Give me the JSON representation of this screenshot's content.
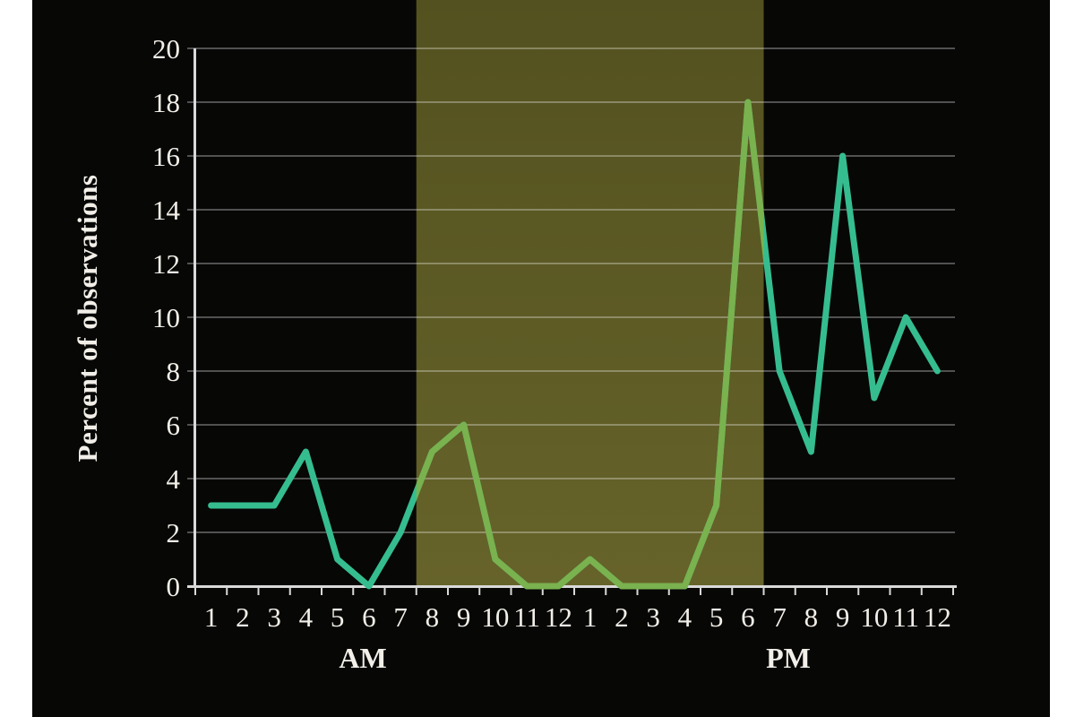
{
  "figure": {
    "ylabel": "Percent of observations",
    "am_label": "AM",
    "pm_label": "PM"
  },
  "chart_data": {
    "type": "line",
    "title": "",
    "xlabel": "",
    "ylabel": "Percent of observations",
    "ylim": [
      0,
      20
    ],
    "yticks": [
      0,
      2,
      4,
      6,
      8,
      10,
      12,
      14,
      16,
      18,
      20
    ],
    "grid": true,
    "x_tick_labels": [
      "1",
      "2",
      "3",
      "4",
      "5",
      "6",
      "7",
      "8",
      "9",
      "10",
      "11",
      "12",
      "1",
      "2",
      "3",
      "4",
      "5",
      "6",
      "7",
      "8",
      "9",
      "10",
      "11",
      "12"
    ],
    "x_group_labels": [
      "AM",
      "PM"
    ],
    "series": [
      {
        "name": "percent-of-observations",
        "values": [
          3,
          3,
          3,
          5,
          1,
          0,
          2,
          5,
          6,
          1,
          0,
          0,
          1,
          0,
          0,
          0,
          3,
          18,
          8,
          5,
          16,
          7,
          10,
          8
        ]
      }
    ],
    "shaded_region": {
      "from_category_boundary": 7,
      "to_category_boundary": 18,
      "covers_hours": "8 AM through 6 PM"
    },
    "colors": {
      "page_margin": "#ffffff",
      "background": "#070706",
      "shade_top": "#53511f",
      "shade_bottom": "#66632a",
      "grid": "rgba(255,255,255,0.30)",
      "axis": "#d9d9d9",
      "text": "#f2efe8",
      "line": "#35bd90",
      "line_in_shade": "#79b24e"
    }
  }
}
